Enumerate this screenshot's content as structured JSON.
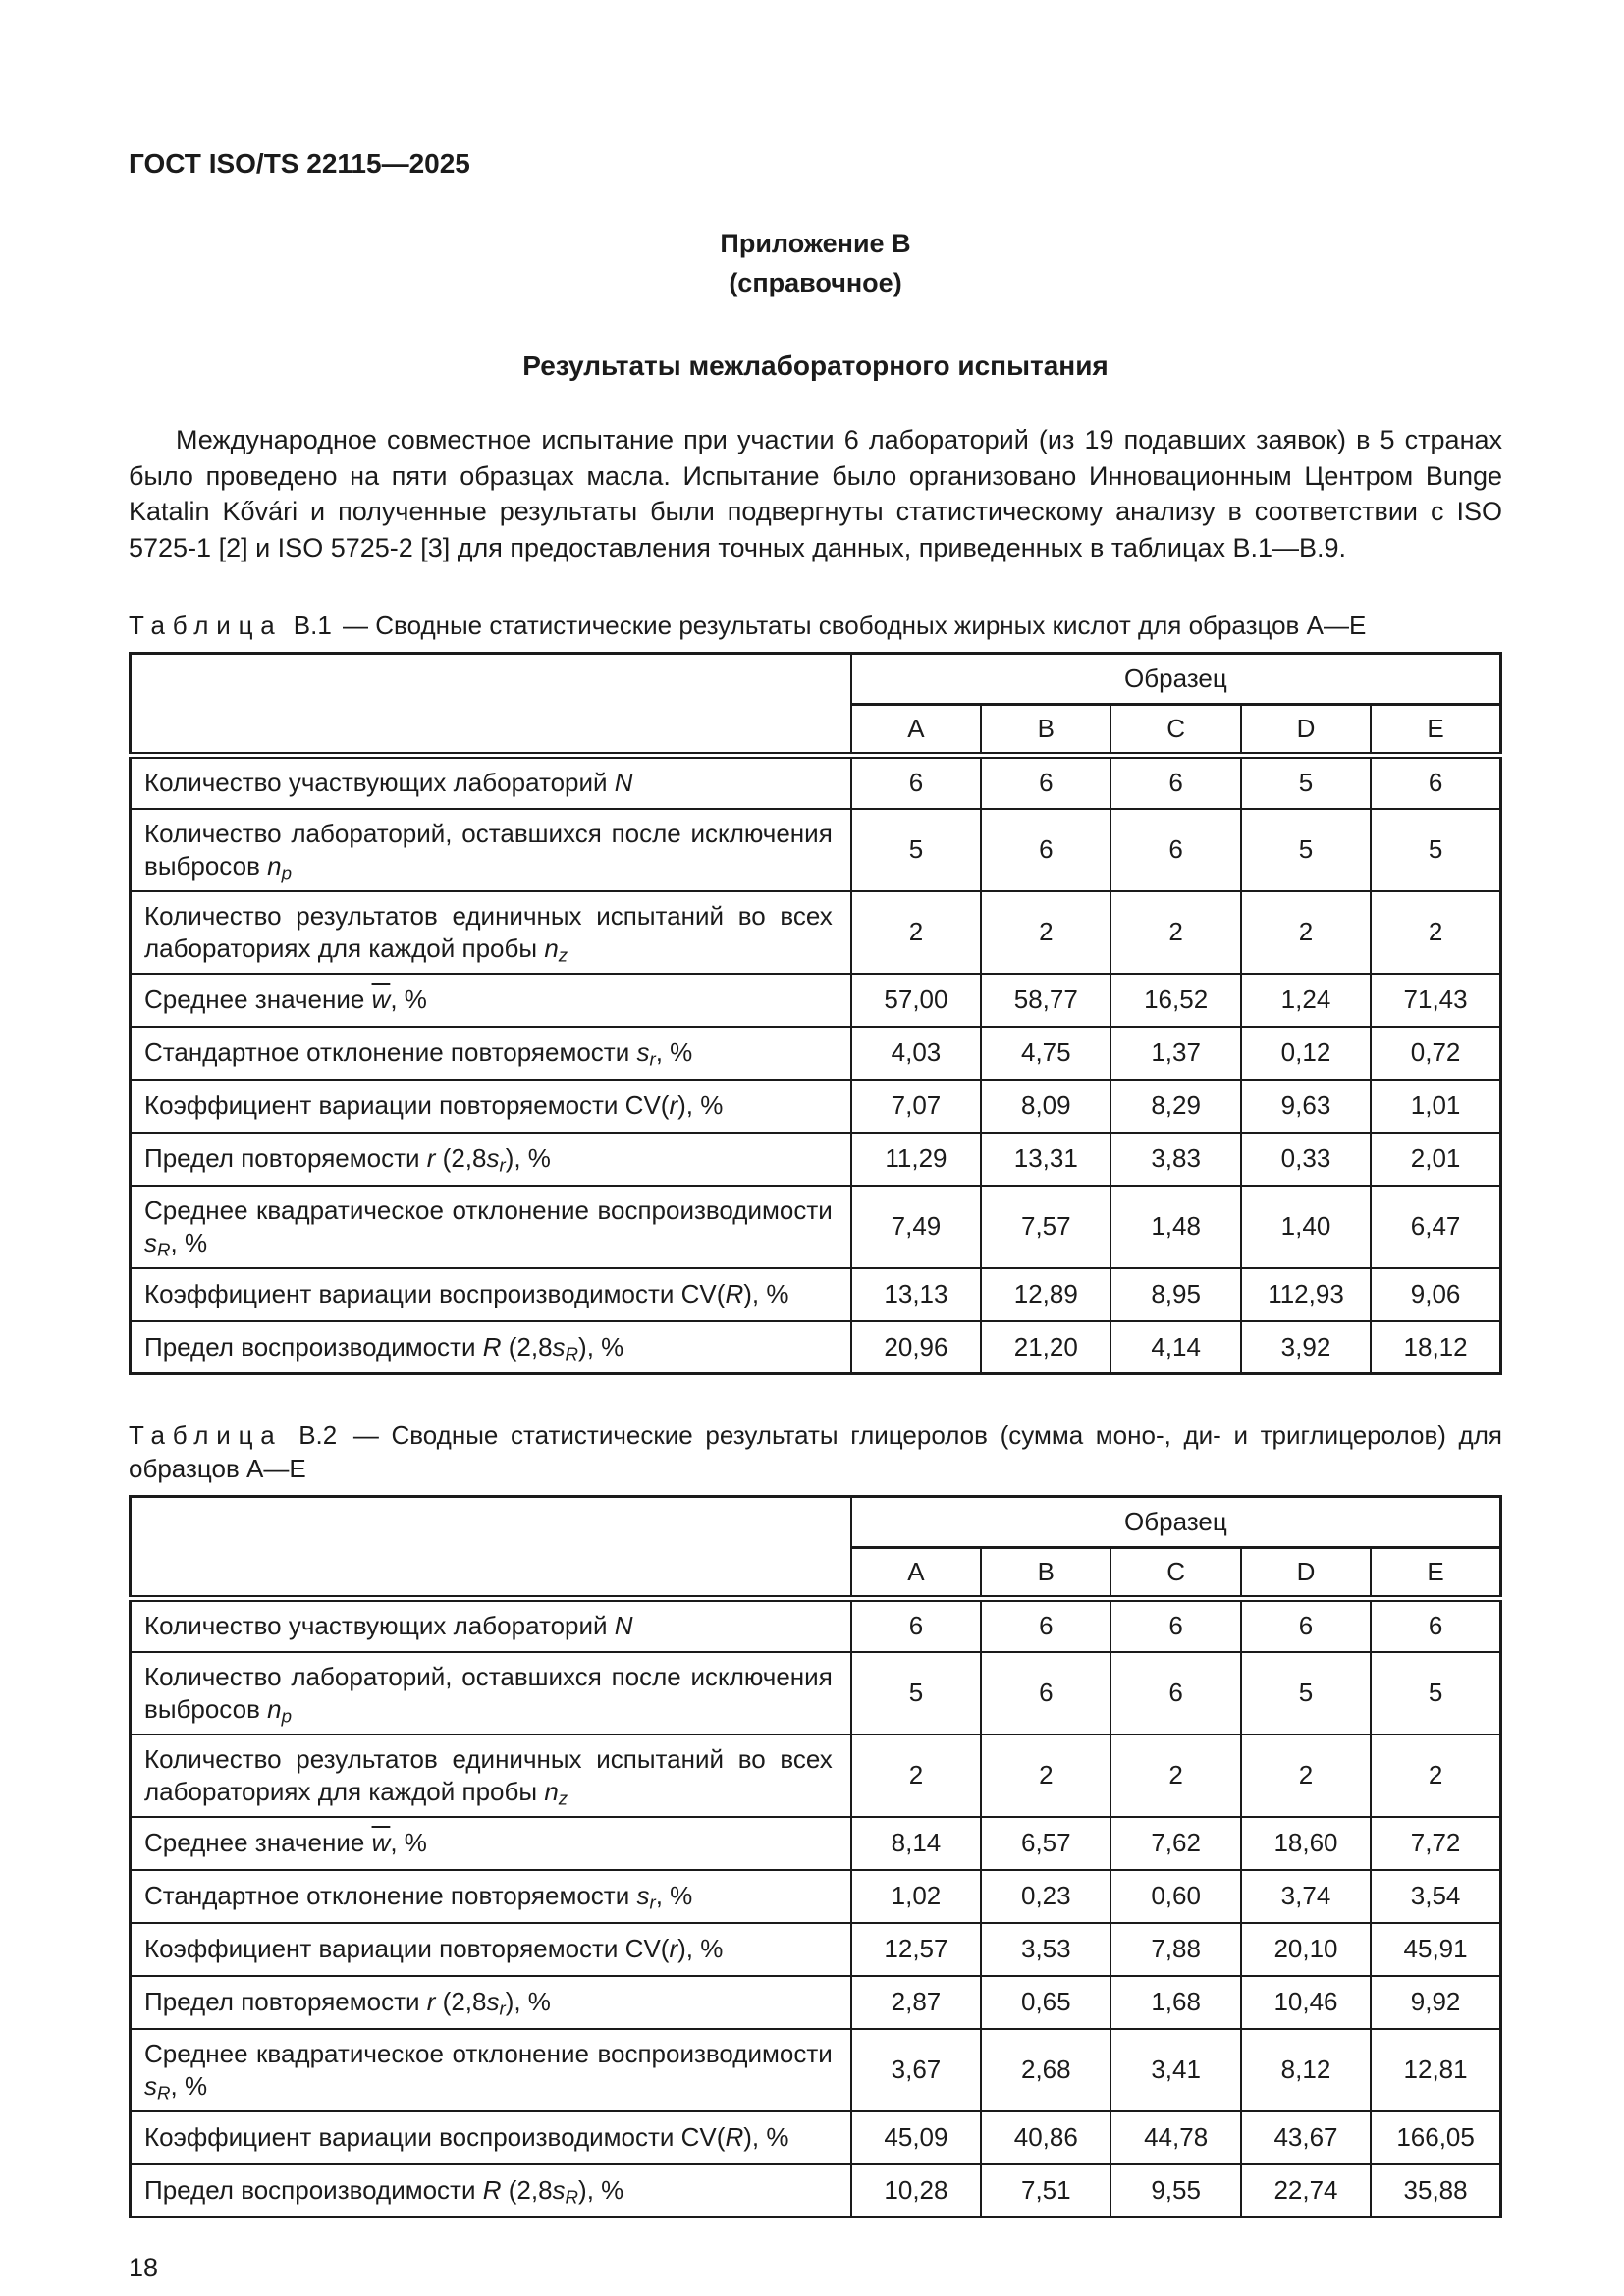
{
  "page": {
    "doc_code": "ГОСТ ISO/TS 22115—2025",
    "appendix_label": "Приложение В",
    "appendix_note": "(справочное)",
    "section_title": "Результаты межлабораторного испытания",
    "intro_paragraph": "Международное совместное испытание при участии 6 лабораторий (из 19 подавших заявок) в 5 странах было проведено на пяти образцах масла. Испытание было организовано Инновационным Центром Bunge Katalin Kővári и полученные результаты были подвергнуты статистическому анализу в соответствии с ISO 5725-1 [2] и ISO 5725-2 [3] для предоставления точных данных, приведенных в таблицах В.1—В.9.",
    "page_number": "18"
  },
  "tables": [
    {
      "caption_word": "Таблица",
      "caption_id": "В.1",
      "caption_rest": "— Сводные статистические результаты свободных жирных кислот для образцов A—E",
      "group_header": "Образец",
      "columns": [
        "A",
        "B",
        "C",
        "D",
        "E"
      ],
      "rows": [
        {
          "label_parts": [
            {
              "t": "Количество участвующих лабораторий "
            },
            {
              "t": "N",
              "s": "i"
            }
          ],
          "values": [
            "6",
            "6",
            "6",
            "5",
            "6"
          ]
        },
        {
          "label_parts": [
            {
              "t": "Количество лабораторий, оставшихся после исключе­ния выбросов "
            },
            {
              "t": "n",
              "s": "i"
            },
            {
              "t": "p",
              "s": "sub"
            }
          ],
          "values": [
            "5",
            "6",
            "6",
            "5",
            "5"
          ]
        },
        {
          "label_parts": [
            {
              "t": "Количество результатов единичных испытаний во всех лабораториях для каждой пробы "
            },
            {
              "t": "n",
              "s": "i"
            },
            {
              "t": "z",
              "s": "sub"
            }
          ],
          "values": [
            "2",
            "2",
            "2",
            "2",
            "2"
          ]
        },
        {
          "label_parts": [
            {
              "t": "Среднее значение "
            },
            {
              "t": "w",
              "s": "ov"
            },
            {
              "t": ", %"
            }
          ],
          "values": [
            "57,00",
            "58,77",
            "16,52",
            "1,24",
            "71,43"
          ]
        },
        {
          "label_parts": [
            {
              "t": "Стандартное отклонение повторяемости "
            },
            {
              "t": "s",
              "s": "i"
            },
            {
              "t": "r",
              "s": "sub"
            },
            {
              "t": ", %"
            }
          ],
          "values": [
            "4,03",
            "4,75",
            "1,37",
            "0,12",
            "0,72"
          ]
        },
        {
          "label_parts": [
            {
              "t": "Коэффициент вариации повторяемости CV("
            },
            {
              "t": "r",
              "s": "i"
            },
            {
              "t": "), %"
            }
          ],
          "values": [
            "7,07",
            "8,09",
            "8,29",
            "9,63",
            "1,01"
          ]
        },
        {
          "label_parts": [
            {
              "t": "Предел повторяемости "
            },
            {
              "t": "r",
              "s": "i"
            },
            {
              "t": " (2,8"
            },
            {
              "t": "s",
              "s": "i"
            },
            {
              "t": "r",
              "s": "sub"
            },
            {
              "t": "), %"
            }
          ],
          "values": [
            "11,29",
            "13,31",
            "3,83",
            "0,33",
            "2,01"
          ]
        },
        {
          "label_parts": [
            {
              "t": "Среднее квадратическое отклонение воспроизводи­мости "
            },
            {
              "t": "s",
              "s": "i"
            },
            {
              "t": "R",
              "s": "sub"
            },
            {
              "t": ", %"
            }
          ],
          "values": [
            "7,49",
            "7,57",
            "1,48",
            "1,40",
            "6,47"
          ]
        },
        {
          "label_parts": [
            {
              "t": "Коэффициент вариации воспроизводимости CV("
            },
            {
              "t": "R",
              "s": "i"
            },
            {
              "t": "), %"
            }
          ],
          "values": [
            "13,13",
            "12,89",
            "8,95",
            "112,93",
            "9,06"
          ]
        },
        {
          "label_parts": [
            {
              "t": "Предел воспроизводимости "
            },
            {
              "t": "R",
              "s": "i"
            },
            {
              "t": " (2,8"
            },
            {
              "t": "s",
              "s": "i"
            },
            {
              "t": "R",
              "s": "sub"
            },
            {
              "t": "), %"
            }
          ],
          "values": [
            "20,96",
            "21,20",
            "4,14",
            "3,92",
            "18,12"
          ]
        }
      ]
    },
    {
      "caption_word": "Таблица",
      "caption_id": "В.2",
      "caption_rest": "— Сводные статистические результаты глицеролов (сумма моно-, ди- и триглицеролов) для образцов A—E",
      "group_header": "Образец",
      "columns": [
        "A",
        "B",
        "C",
        "D",
        "E"
      ],
      "rows": [
        {
          "label_parts": [
            {
              "t": "Количество участвующих лабораторий "
            },
            {
              "t": "N",
              "s": "i"
            }
          ],
          "values": [
            "6",
            "6",
            "6",
            "6",
            "6"
          ]
        },
        {
          "label_parts": [
            {
              "t": "Количество лабораторий, оставшихся после исключе­ния выбросов "
            },
            {
              "t": "n",
              "s": "i"
            },
            {
              "t": "p",
              "s": "sub"
            }
          ],
          "values": [
            "5",
            "6",
            "6",
            "5",
            "5"
          ]
        },
        {
          "label_parts": [
            {
              "t": "Количество результатов единичных испытаний во всех лабораториях для каждой пробы "
            },
            {
              "t": "n",
              "s": "i"
            },
            {
              "t": "z",
              "s": "sub"
            }
          ],
          "values": [
            "2",
            "2",
            "2",
            "2",
            "2"
          ]
        },
        {
          "label_parts": [
            {
              "t": "Среднее значение "
            },
            {
              "t": "w",
              "s": "ov"
            },
            {
              "t": ", %"
            }
          ],
          "values": [
            "8,14",
            "6,57",
            "7,62",
            "18,60",
            "7,72"
          ]
        },
        {
          "label_parts": [
            {
              "t": "Стандартное отклонение повторяемости "
            },
            {
              "t": "s",
              "s": "i"
            },
            {
              "t": "r",
              "s": "sub"
            },
            {
              "t": ", %"
            }
          ],
          "values": [
            "1,02",
            "0,23",
            "0,60",
            "3,74",
            "3,54"
          ]
        },
        {
          "label_parts": [
            {
              "t": "Коэффициент вариации повторяемости CV("
            },
            {
              "t": "r",
              "s": "i"
            },
            {
              "t": "), %"
            }
          ],
          "values": [
            "12,57",
            "3,53",
            "7,88",
            "20,10",
            "45,91"
          ]
        },
        {
          "label_parts": [
            {
              "t": "Предел повторяемости "
            },
            {
              "t": "r",
              "s": "i"
            },
            {
              "t": " (2,8"
            },
            {
              "t": "s",
              "s": "i"
            },
            {
              "t": "r",
              "s": "sub"
            },
            {
              "t": "), %"
            }
          ],
          "values": [
            "2,87",
            "0,65",
            "1,68",
            "10,46",
            "9,92"
          ]
        },
        {
          "label_parts": [
            {
              "t": "Среднее квадратическое отклонение воспроизводи­мости "
            },
            {
              "t": "s",
              "s": "i"
            },
            {
              "t": "R",
              "s": "sub"
            },
            {
              "t": ", %"
            }
          ],
          "values": [
            "3,67",
            "2,68",
            "3,41",
            "8,12",
            "12,81"
          ]
        },
        {
          "label_parts": [
            {
              "t": "Коэффициент вариации воспроизводимости CV("
            },
            {
              "t": "R",
              "s": "i"
            },
            {
              "t": "), %"
            }
          ],
          "values": [
            "45,09",
            "40,86",
            "44,78",
            "43,67",
            "166,05"
          ]
        },
        {
          "label_parts": [
            {
              "t": "Предел воспроизводимости "
            },
            {
              "t": "R",
              "s": "i"
            },
            {
              "t": " (2,8"
            },
            {
              "t": "s",
              "s": "i"
            },
            {
              "t": "R",
              "s": "sub"
            },
            {
              "t": "), %"
            }
          ],
          "values": [
            "10,28",
            "7,51",
            "9,55",
            "22,74",
            "35,88"
          ]
        }
      ]
    }
  ]
}
